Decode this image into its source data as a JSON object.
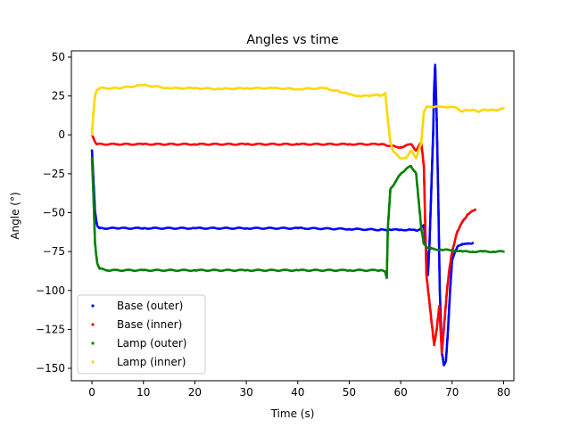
{
  "chart_data": {
    "type": "scatter",
    "title": "Angles vs time",
    "xlabel": "Time (s)",
    "ylabel": "Angle (°)",
    "xlim": [
      -4,
      82
    ],
    "ylim": [
      -158,
      54
    ],
    "xticks": [
      0,
      10,
      20,
      30,
      40,
      50,
      60,
      70,
      80
    ],
    "yticks": [
      50,
      25,
      0,
      -25,
      -50,
      -75,
      -100,
      -125,
      -150
    ],
    "xtick_labels": [
      "0",
      "10",
      "20",
      "30",
      "40",
      "50",
      "60",
      "70",
      "80"
    ],
    "ytick_labels": [
      "50",
      "25",
      "0",
      "−25",
      "−50",
      "−75",
      "−100",
      "−125",
      "−150"
    ],
    "grid": false,
    "legend_position": "lower-left",
    "series": [
      {
        "name": "Base (outer)",
        "color": "#0000ff",
        "points": [
          [
            0,
            -10
          ],
          [
            0.3,
            -30
          ],
          [
            0.6,
            -50
          ],
          [
            1,
            -58
          ],
          [
            1.5,
            -60
          ],
          [
            5,
            -60
          ],
          [
            10,
            -60
          ],
          [
            20,
            -60
          ],
          [
            30,
            -60
          ],
          [
            40,
            -60
          ],
          [
            50,
            -60.5
          ],
          [
            56,
            -61
          ],
          [
            57,
            -61
          ],
          [
            57.5,
            -61
          ],
          [
            58,
            -61
          ],
          [
            60,
            -61
          ],
          [
            62,
            -61
          ],
          [
            63,
            -61.5
          ],
          [
            64,
            -60
          ],
          [
            64.5,
            -58
          ],
          [
            65,
            -75
          ],
          [
            65.3,
            -90
          ],
          [
            65.6,
            -70
          ],
          [
            66,
            -30
          ],
          [
            66.3,
            0
          ],
          [
            66.5,
            30
          ],
          [
            66.7,
            45
          ],
          [
            67,
            10
          ],
          [
            67.3,
            -40
          ],
          [
            67.6,
            -100
          ],
          [
            68,
            -140
          ],
          [
            68.4,
            -148
          ],
          [
            68.8,
            -145
          ],
          [
            69.2,
            -125
          ],
          [
            69.6,
            -100
          ],
          [
            70,
            -80
          ],
          [
            71,
            -72
          ],
          [
            72,
            -70
          ],
          [
            73,
            -70
          ],
          [
            74,
            -69.5
          ]
        ]
      },
      {
        "name": "Base (inner)",
        "color": "#ff0000",
        "points": [
          [
            0,
            0
          ],
          [
            0.5,
            -4
          ],
          [
            1,
            -6
          ],
          [
            5,
            -6
          ],
          [
            10,
            -6
          ],
          [
            20,
            -6
          ],
          [
            30,
            -6
          ],
          [
            40,
            -6
          ],
          [
            50,
            -6
          ],
          [
            56,
            -6
          ],
          [
            57,
            -6.5
          ],
          [
            58,
            -7
          ],
          [
            60,
            -8
          ],
          [
            62,
            -6
          ],
          [
            63,
            -10
          ],
          [
            64,
            -5
          ],
          [
            64.5,
            -20
          ],
          [
            65,
            -90
          ],
          [
            65.5,
            -105
          ],
          [
            66,
            -120
          ],
          [
            66.5,
            -135
          ],
          [
            67,
            -125
          ],
          [
            67.5,
            -110
          ],
          [
            68,
            -140
          ],
          [
            68.5,
            -120
          ],
          [
            69,
            -100
          ],
          [
            69.5,
            -85
          ],
          [
            70,
            -75
          ],
          [
            71,
            -62
          ],
          [
            72,
            -56
          ],
          [
            73,
            -51
          ],
          [
            74,
            -49
          ],
          [
            74.5,
            -48
          ]
        ]
      },
      {
        "name": "Lamp (outer)",
        "color": "#008000",
        "points": [
          [
            0,
            -15
          ],
          [
            0.3,
            -40
          ],
          [
            0.6,
            -70
          ],
          [
            1,
            -82
          ],
          [
            1.5,
            -86
          ],
          [
            3,
            -87
          ],
          [
            10,
            -87
          ],
          [
            20,
            -87
          ],
          [
            30,
            -87
          ],
          [
            40,
            -87
          ],
          [
            50,
            -87
          ],
          [
            56,
            -87
          ],
          [
            57,
            -88
          ],
          [
            57.3,
            -92
          ],
          [
            57.5,
            -60
          ],
          [
            58,
            -35
          ],
          [
            59,
            -30
          ],
          [
            60,
            -25
          ],
          [
            61,
            -22
          ],
          [
            62,
            -20
          ],
          [
            63,
            -25
          ],
          [
            64,
            -60
          ],
          [
            64.5,
            -70
          ],
          [
            65,
            -72
          ],
          [
            66,
            -73
          ],
          [
            68,
            -74
          ],
          [
            70,
            -74
          ],
          [
            72,
            -75
          ],
          [
            74,
            -75
          ],
          [
            76,
            -75
          ],
          [
            78,
            -75
          ],
          [
            80,
            -75
          ]
        ]
      },
      {
        "name": "Lamp (inner)",
        "color": "#ffd700",
        "points": [
          [
            0,
            0
          ],
          [
            0.3,
            15
          ],
          [
            0.6,
            25
          ],
          [
            1,
            29
          ],
          [
            1.5,
            30
          ],
          [
            5,
            30
          ],
          [
            10,
            32
          ],
          [
            15,
            30
          ],
          [
            20,
            30
          ],
          [
            25,
            29.5
          ],
          [
            30,
            30
          ],
          [
            35,
            30
          ],
          [
            40,
            29.5
          ],
          [
            45,
            30
          ],
          [
            48,
            28
          ],
          [
            50,
            26
          ],
          [
            52,
            25
          ],
          [
            54,
            25
          ],
          [
            55,
            26
          ],
          [
            56,
            25
          ],
          [
            57,
            27
          ],
          [
            57.5,
            10
          ],
          [
            58,
            -5
          ],
          [
            58.5,
            -10
          ],
          [
            59,
            -12
          ],
          [
            60,
            -15
          ],
          [
            61,
            -15
          ],
          [
            62,
            -10
          ],
          [
            63,
            -15
          ],
          [
            64,
            -5
          ],
          [
            64.5,
            15
          ],
          [
            65,
            18
          ],
          [
            66,
            18
          ],
          [
            68,
            18
          ],
          [
            70,
            18
          ],
          [
            71,
            17
          ],
          [
            72,
            15
          ],
          [
            73,
            16
          ],
          [
            74,
            16
          ],
          [
            75,
            15
          ],
          [
            76,
            16
          ],
          [
            77,
            16
          ],
          [
            78,
            16
          ],
          [
            79,
            16
          ],
          [
            80,
            17
          ]
        ]
      }
    ]
  }
}
